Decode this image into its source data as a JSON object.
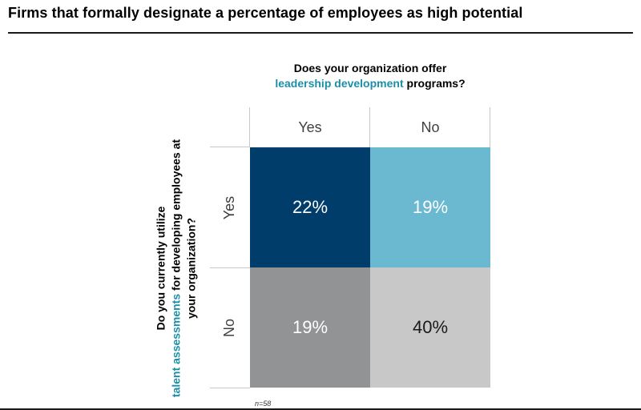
{
  "title": "Firms that formally designate a percentage of employees as high potential",
  "column_question": {
    "pre": "Does your organization offer",
    "highlight": "leadership development",
    "post": "programs?"
  },
  "row_question": {
    "pre": "Do you currently utilize",
    "highlight": "talent assessments",
    "post": "for developing employees at your organization?"
  },
  "highlight_color": "#1b8fa8",
  "note": "n=58",
  "chart_data": {
    "type": "table",
    "columns": [
      "Yes",
      "No"
    ],
    "rows": [
      "Yes",
      "No"
    ],
    "cells": [
      [
        {
          "label": "22%",
          "value": 22,
          "color": "#003d6b",
          "text_color": "#ffffff"
        },
        {
          "label": "19%",
          "value": 19,
          "color": "#6bb9d1",
          "text_color": "#ffffff"
        }
      ],
      [
        {
          "label": "19%",
          "value": 19,
          "color": "#919395",
          "text_color": "#ffffff"
        },
        {
          "label": "40%",
          "value": 40,
          "color": "#c8c8c8",
          "text_color": "#1a1a1a"
        }
      ]
    ]
  }
}
